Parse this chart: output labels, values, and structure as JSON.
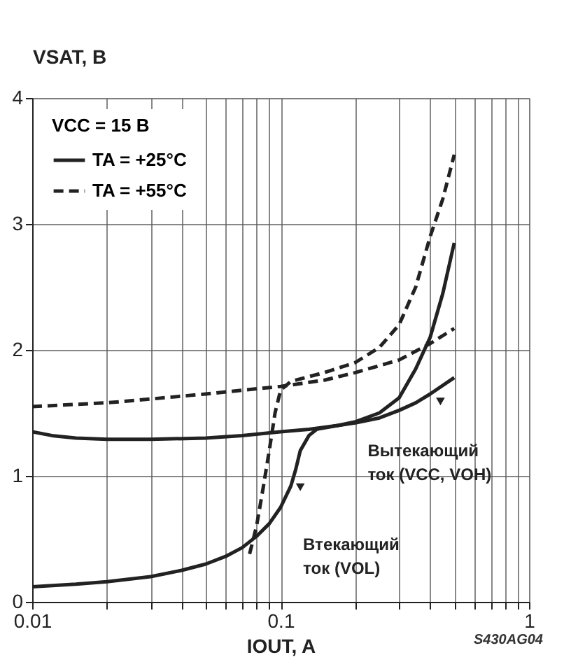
{
  "chart_data": {
    "type": "line",
    "xlabel": "IOUT, A",
    "ylabel": "VSAT, В",
    "legend_title": "VCC = 15 В",
    "log": "x",
    "xlim": [
      0.01,
      1
    ],
    "ylim": [
      0,
      4
    ],
    "xticks": [
      0.01,
      {
        "value": 0.02,
        "label": null
      },
      {
        "value": 0.03,
        "label": null
      },
      {
        "value": 0.04,
        "label": null
      },
      {
        "value": 0.05,
        "label": null
      },
      {
        "value": 0.06,
        "label": null
      },
      {
        "value": 0.07,
        "label": null
      },
      {
        "value": 0.08,
        "label": null
      },
      {
        "value": 0.09,
        "label": null
      },
      0.1,
      {
        "value": 0.2,
        "label": null
      },
      {
        "value": 0.3,
        "label": null
      },
      {
        "value": 0.4,
        "label": null
      },
      {
        "value": 0.5,
        "label": null
      },
      {
        "value": 0.6,
        "label": null
      },
      {
        "value": 0.7,
        "label": null
      },
      {
        "value": 0.8,
        "label": null
      },
      {
        "value": 0.9,
        "label": null
      },
      1
    ],
    "yticks": [
      0,
      1,
      2,
      3,
      4
    ],
    "grid": true,
    "legend": "top left",
    "marker": "none",
    "series": [
      {
        "name": "TA = +25°C",
        "color": "#222222",
        "line_style": "solid",
        "x": [
          0.01,
          0.012,
          0.015,
          0.02,
          0.03,
          0.05,
          0.07,
          0.1,
          0.13,
          0.17,
          0.2,
          0.25,
          0.3,
          0.35,
          0.4,
          0.5
        ],
        "values": [
          1.35,
          1.32,
          1.3,
          1.29,
          1.29,
          1.3,
          1.32,
          1.35,
          1.37,
          1.4,
          1.42,
          1.46,
          1.52,
          1.58,
          1.65,
          1.78
        ]
      },
      {
        "color": "#222222",
        "line_style": "solid",
        "x": [
          0.01,
          0.015,
          0.02,
          0.03,
          0.04,
          0.05,
          0.06,
          0.07,
          0.08,
          0.09,
          0.1,
          0.11,
          0.115,
          0.12,
          0.13,
          0.14,
          0.17,
          0.2,
          0.25,
          0.3,
          0.35,
          0.4,
          0.45,
          0.5
        ],
        "values": [
          0.12,
          0.14,
          0.16,
          0.2,
          0.25,
          0.3,
          0.36,
          0.43,
          0.52,
          0.62,
          0.75,
          0.92,
          1.05,
          1.2,
          1.32,
          1.37,
          1.4,
          1.43,
          1.5,
          1.62,
          1.85,
          2.1,
          2.45,
          2.85
        ]
      },
      {
        "name": "TA = +55°C",
        "color": "#222222",
        "line_style": "dashed",
        "x": [
          0.01,
          0.02,
          0.03,
          0.05,
          0.07,
          0.1,
          0.15,
          0.2,
          0.3,
          0.4,
          0.5
        ],
        "values": [
          1.55,
          1.58,
          1.61,
          1.65,
          1.68,
          1.71,
          1.76,
          1.82,
          1.92,
          2.05,
          2.17
        ]
      },
      {
        "color": "#222222",
        "line_style": "dashed",
        "x": [
          0.075,
          0.08,
          0.085,
          0.09,
          0.095,
          0.1,
          0.11,
          0.15,
          0.2,
          0.25,
          0.3,
          0.35,
          0.4,
          0.45,
          0.5
        ],
        "values": [
          0.38,
          0.6,
          0.9,
          1.2,
          1.5,
          1.68,
          1.75,
          1.82,
          1.9,
          2.02,
          2.2,
          2.5,
          2.9,
          3.2,
          3.55
        ]
      }
    ],
    "annotations": [
      {
        "text": "Вытекающий\nток (VCC, VOH)",
        "x": 0.44,
        "y": 1.59
      },
      {
        "text": "Втекающий\nток (VOL)",
        "x": 0.12,
        "y": 0.91
      },
      "S430AG04"
    ]
  }
}
